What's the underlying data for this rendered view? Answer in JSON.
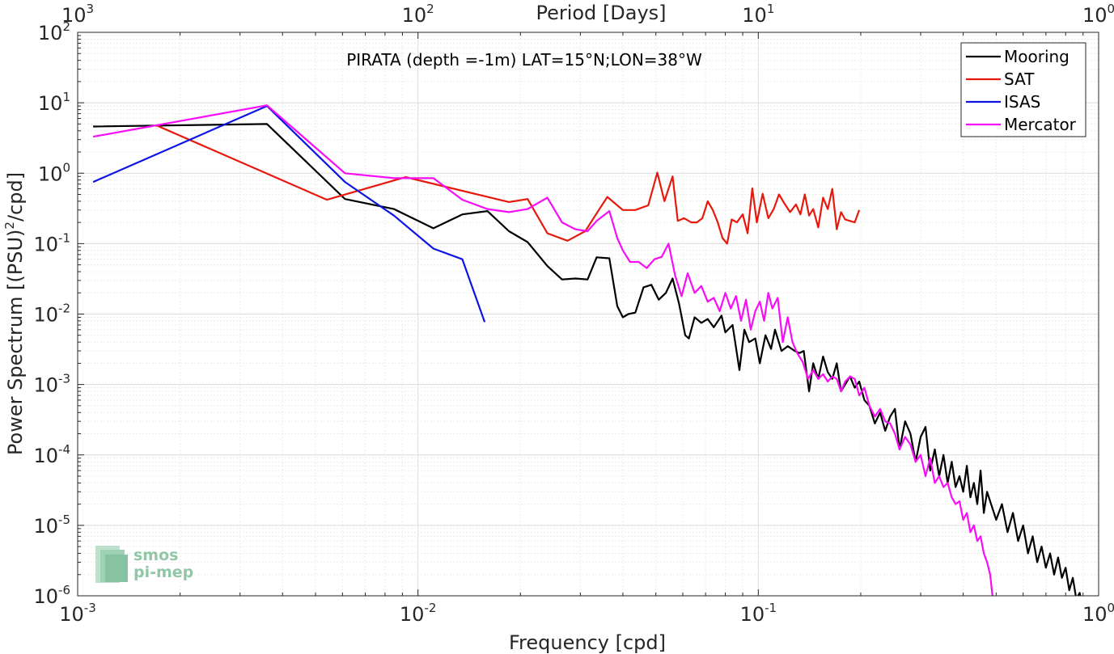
{
  "chart_data": {
    "type": "line",
    "title": "PIRATA (depth =-1m) LAT=15°N;LON=38°W",
    "xlabel": "Frequency [cpd]",
    "ylabel": "Power Spectrum [(PSU)²/cpd]",
    "ylabel_parts": {
      "pre": "Power Spectrum [(PSU)",
      "sup": "2",
      "post": "/cpd]"
    },
    "x2label": "Period [Days]",
    "xscale": "log",
    "yscale": "log",
    "xlim": [
      0.001,
      1
    ],
    "ylim": [
      1e-06,
      100
    ],
    "grid": true,
    "minor_grid": true,
    "legend_position": "top-right",
    "xticks": [
      {
        "base": "10",
        "exp": "-3",
        "value": 0.001
      },
      {
        "base": "10",
        "exp": "-2",
        "value": 0.01
      },
      {
        "base": "10",
        "exp": "-1",
        "value": 0.1
      },
      {
        "base": "10",
        "exp": "0",
        "value": 1
      }
    ],
    "x2ticks": [
      {
        "base": "10",
        "exp": "3",
        "value": 0.001
      },
      {
        "base": "10",
        "exp": "2",
        "value": 0.01
      },
      {
        "base": "10",
        "exp": "1",
        "value": 0.1
      },
      {
        "base": "10",
        "exp": "0",
        "value": 1
      }
    ],
    "yticks": [
      {
        "base": "10",
        "exp": "2",
        "value": 100
      },
      {
        "base": "10",
        "exp": "1",
        "value": 10
      },
      {
        "base": "10",
        "exp": "0",
        "value": 1
      },
      {
        "base": "10",
        "exp": "-1",
        "value": 0.1
      },
      {
        "base": "10",
        "exp": "-2",
        "value": 0.01
      },
      {
        "base": "10",
        "exp": "-3",
        "value": 0.001
      },
      {
        "base": "10",
        "exp": "-4",
        "value": 0.0001
      },
      {
        "base": "10",
        "exp": "-5",
        "value": 1e-05
      },
      {
        "base": "10",
        "exp": "-6",
        "value": 1e-06
      }
    ],
    "series": [
      {
        "name": "Mooring",
        "color": "#000000",
        "x": [
          0.00111,
          0.0036,
          0.0061,
          0.0085,
          0.0111,
          0.0135,
          0.016,
          0.0185,
          0.021,
          0.024,
          0.0265,
          0.029,
          0.0315,
          0.0335,
          0.0365,
          0.0385,
          0.04,
          0.0415,
          0.0435,
          0.046,
          0.0485,
          0.051,
          0.0535,
          0.056,
          0.0585,
          0.061,
          0.0625,
          0.065,
          0.068,
          0.071,
          0.074,
          0.078,
          0.08,
          0.084,
          0.088,
          0.091,
          0.094,
          0.098,
          0.101,
          0.105,
          0.109,
          0.112,
          0.117,
          0.122,
          0.128,
          0.132,
          0.136,
          0.141,
          0.145,
          0.15,
          0.155,
          0.16,
          0.165,
          0.17,
          0.175,
          0.18,
          0.186,
          0.192,
          0.198,
          0.205,
          0.212,
          0.22,
          0.228,
          0.236,
          0.244,
          0.252,
          0.26,
          0.27,
          0.28,
          0.29,
          0.3,
          0.31,
          0.32,
          0.33,
          0.34,
          0.35,
          0.36,
          0.37,
          0.38,
          0.39,
          0.4,
          0.41,
          0.42,
          0.43,
          0.44,
          0.45,
          0.46,
          0.47,
          0.48,
          0.5,
          0.52,
          0.54,
          0.56,
          0.58,
          0.6,
          0.62,
          0.64,
          0.66,
          0.68,
          0.7,
          0.72,
          0.74,
          0.76,
          0.78,
          0.8,
          0.82,
          0.84,
          0.86,
          0.88,
          0.9
        ],
        "y": [
          4.6,
          5.0,
          0.43,
          0.31,
          0.165,
          0.26,
          0.29,
          0.15,
          0.105,
          0.048,
          0.031,
          0.032,
          0.031,
          0.064,
          0.062,
          0.013,
          0.009,
          0.01,
          0.0105,
          0.024,
          0.026,
          0.016,
          0.02,
          0.032,
          0.014,
          0.005,
          0.0045,
          0.009,
          0.0075,
          0.0085,
          0.0065,
          0.0095,
          0.0055,
          0.007,
          0.0016,
          0.006,
          0.004,
          0.0045,
          0.002,
          0.005,
          0.0032,
          0.006,
          0.003,
          0.0035,
          0.003,
          0.0028,
          0.003,
          0.0008,
          0.002,
          0.0012,
          0.0025,
          0.0015,
          0.0012,
          0.002,
          0.0008,
          0.001,
          0.0013,
          0.0009,
          0.0011,
          0.0006,
          0.0005,
          0.00028,
          0.0004,
          0.00022,
          0.00035,
          0.00045,
          0.00012,
          0.0003,
          0.0002,
          8e-05,
          0.00018,
          0.00025,
          6e-05,
          0.00012,
          5e-05,
          0.0001,
          4e-05,
          8e-05,
          3.5e-05,
          5e-05,
          3e-05,
          7e-05,
          2.5e-05,
          4e-05,
          2e-05,
          6e-05,
          1.5e-05,
          3e-05,
          2.2e-05,
          1.2e-05,
          2e-05,
          8e-06,
          1.5e-05,
          6e-06,
          1e-05,
          4e-06,
          7e-06,
          3e-06,
          5e-06,
          2.5e-06,
          4e-06,
          2e-06,
          3.5e-06,
          1.8e-06,
          2.5e-06,
          1.2e-06,
          1.8e-06,
          9e-07,
          1.1e-06,
          6e-07
        ]
      },
      {
        "name": "SAT",
        "color": "#e8180c",
        "x": [
          0.0017,
          0.0054,
          0.0092,
          0.0185,
          0.021,
          0.024,
          0.0275,
          0.031,
          0.034,
          0.036,
          0.04,
          0.0435,
          0.0475,
          0.0505,
          0.053,
          0.056,
          0.058,
          0.0605,
          0.0635,
          0.066,
          0.0685,
          0.071,
          0.0735,
          0.076,
          0.0785,
          0.081,
          0.0835,
          0.0865,
          0.09,
          0.093,
          0.096,
          0.099,
          0.103,
          0.107,
          0.111,
          0.115,
          0.119,
          0.124,
          0.129,
          0.133,
          0.137,
          0.141,
          0.145,
          0.15,
          0.155,
          0.16,
          0.165,
          0.17,
          0.175,
          0.18,
          0.186,
          0.192,
          0.198
        ],
        "y": [
          4.8,
          0.42,
          0.88,
          0.39,
          0.43,
          0.14,
          0.11,
          0.15,
          0.3,
          0.46,
          0.3,
          0.3,
          0.35,
          1.02,
          0.4,
          0.9,
          0.21,
          0.23,
          0.2,
          0.2,
          0.23,
          0.4,
          0.3,
          0.2,
          0.12,
          0.1,
          0.22,
          0.2,
          0.26,
          0.14,
          0.61,
          0.2,
          0.51,
          0.23,
          0.31,
          0.5,
          0.38,
          0.28,
          0.36,
          0.26,
          0.5,
          0.25,
          0.31,
          0.17,
          0.45,
          0.31,
          0.6,
          0.16,
          0.28,
          0.22,
          0.21,
          0.2,
          0.3
        ]
      },
      {
        "name": "ISAS",
        "color": "#0c14e6",
        "x": [
          0.00111,
          0.0036,
          0.0061,
          0.0085,
          0.0111,
          0.0135,
          0.0157
        ],
        "y": [
          0.75,
          9.0,
          0.75,
          0.25,
          0.085,
          0.06,
          0.0077
        ]
      },
      {
        "name": "Mercator",
        "color": "#f70df7",
        "x": [
          0.00111,
          0.0036,
          0.0061,
          0.0085,
          0.0111,
          0.0135,
          0.016,
          0.0185,
          0.021,
          0.024,
          0.0265,
          0.029,
          0.0315,
          0.0335,
          0.0365,
          0.0385,
          0.04,
          0.042,
          0.0445,
          0.047,
          0.0495,
          0.052,
          0.0545,
          0.057,
          0.0595,
          0.062,
          0.065,
          0.068,
          0.071,
          0.074,
          0.077,
          0.08,
          0.083,
          0.086,
          0.089,
          0.092,
          0.095,
          0.098,
          0.101,
          0.104,
          0.107,
          0.11,
          0.114,
          0.118,
          0.122,
          0.126,
          0.13,
          0.135,
          0.14,
          0.145,
          0.15,
          0.155,
          0.16,
          0.165,
          0.17,
          0.175,
          0.18,
          0.186,
          0.192,
          0.198,
          0.205,
          0.212,
          0.22,
          0.228,
          0.236,
          0.244,
          0.252,
          0.26,
          0.27,
          0.28,
          0.29,
          0.3,
          0.31,
          0.32,
          0.33,
          0.34,
          0.35,
          0.36,
          0.37,
          0.38,
          0.39,
          0.4,
          0.41,
          0.42,
          0.43,
          0.44,
          0.45,
          0.46,
          0.47,
          0.48,
          0.49
        ],
        "y": [
          3.3,
          9.2,
          1.0,
          0.85,
          0.85,
          0.42,
          0.31,
          0.28,
          0.31,
          0.45,
          0.2,
          0.16,
          0.15,
          0.21,
          0.29,
          0.12,
          0.08,
          0.055,
          0.055,
          0.045,
          0.06,
          0.065,
          0.1,
          0.035,
          0.018,
          0.038,
          0.02,
          0.025,
          0.015,
          0.017,
          0.011,
          0.02,
          0.012,
          0.018,
          0.008,
          0.016,
          0.006,
          0.011,
          0.015,
          0.008,
          0.02,
          0.012,
          0.017,
          0.004,
          0.009,
          0.004,
          0.0028,
          0.0021,
          0.0012,
          0.0016,
          0.0012,
          0.0014,
          0.0011,
          0.0013,
          0.0012,
          0.0008,
          0.0011,
          0.0013,
          0.0012,
          0.0007,
          0.0009,
          0.0005,
          0.00035,
          0.00045,
          0.0003,
          0.00028,
          0.0002,
          0.00012,
          0.00018,
          0.00014,
          8e-05,
          0.0001,
          5e-05,
          9e-05,
          4e-05,
          5e-05,
          3.5e-05,
          4e-05,
          2.5e-05,
          2e-05,
          2.2e-05,
          1.2e-05,
          1.5e-05,
          8e-06,
          1e-05,
          6e-06,
          7e-06,
          4e-06,
          3e-06,
          2e-06,
          8e-07
        ]
      }
    ]
  },
  "logo": {
    "line1": "smos",
    "line2": "pi-mep",
    "color": "#6db38a"
  }
}
